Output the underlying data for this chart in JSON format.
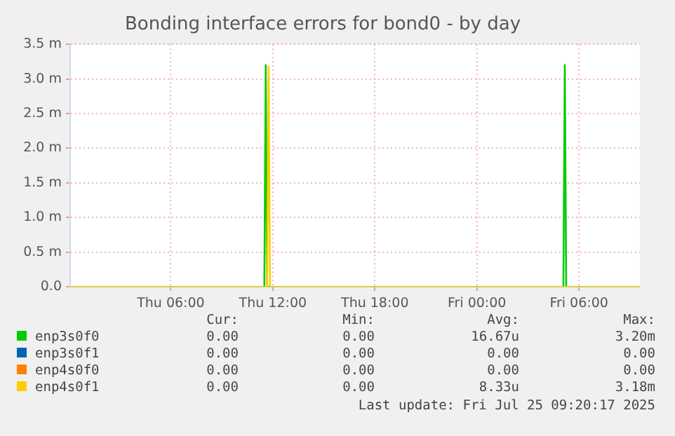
{
  "chart_data": {
    "type": "line",
    "title": "Bonding interface errors for bond0 - by day",
    "xlim": [
      "2025-07-24T00:05",
      "2025-07-25T09:35"
    ],
    "xticks": [
      {
        "value": "2025-07-24T06:00",
        "label": "Thu 06:00"
      },
      {
        "value": "2025-07-24T12:00",
        "label": "Thu 12:00"
      },
      {
        "value": "2025-07-24T18:00",
        "label": "Thu 18:00"
      },
      {
        "value": "2025-07-25T00:00",
        "label": "Fri 00:00"
      },
      {
        "value": "2025-07-25T06:00",
        "label": "Fri 06:00"
      }
    ],
    "ylim": [
      0,
      3.5
    ],
    "yticks": [
      {
        "value": 0,
        "label": "0.0"
      },
      {
        "value": 0.5,
        "label": "0.5 m"
      },
      {
        "value": 1,
        "label": "1.0 m"
      },
      {
        "value": 1.5,
        "label": "1.5 m"
      },
      {
        "value": 2,
        "label": "2.0 m"
      },
      {
        "value": 2.5,
        "label": "2.5 m"
      },
      {
        "value": 3,
        "label": "3.0 m"
      },
      {
        "value": 3.5,
        "label": "3.5 m"
      }
    ],
    "series": [
      {
        "name": "enp3s0f0",
        "color": "#00cc00",
        "x": [
          "2025-07-24T00:05",
          "2025-07-24T11:30",
          "2025-07-24T11:35",
          "2025-07-24T11:40",
          "2025-07-25T05:05",
          "2025-07-25T05:10",
          "2025-07-25T05:15",
          "2025-07-25T09:35"
        ],
        "values": [
          0,
          0,
          3.2,
          0,
          0,
          3.2,
          0,
          0
        ]
      },
      {
        "name": "enp3s0f1",
        "color": "#0066b3"
      },
      {
        "name": "enp4s0f0",
        "color": "#ff8000"
      },
      {
        "name": "enp4s0f1",
        "color": "#ffcc00",
        "x": [
          "2025-07-24T00:05",
          "2025-07-24T11:40",
          "2025-07-24T11:45",
          "2025-07-24T11:50",
          "2025-07-25T09:35"
        ],
        "values": [
          0,
          0,
          3.18,
          0,
          0
        ]
      }
    ],
    "grid": true,
    "legend": "bottom left",
    "marker": "none",
    "line_style": "solid",
    "annotations": [
      "Cur:",
      "Min:",
      "Avg:",
      "Max:",
      "0.00",
      "0.00",
      "16.67u",
      "3.20m",
      "0.00",
      "0.00",
      "0.00",
      "0.00",
      "0.00",
      "0.00",
      "0.00",
      "0.00",
      "0.00",
      "0.00",
      "8.33u",
      "3.18m",
      "Last update: Fri Jul 25 09:20:17 2025"
    ]
  }
}
